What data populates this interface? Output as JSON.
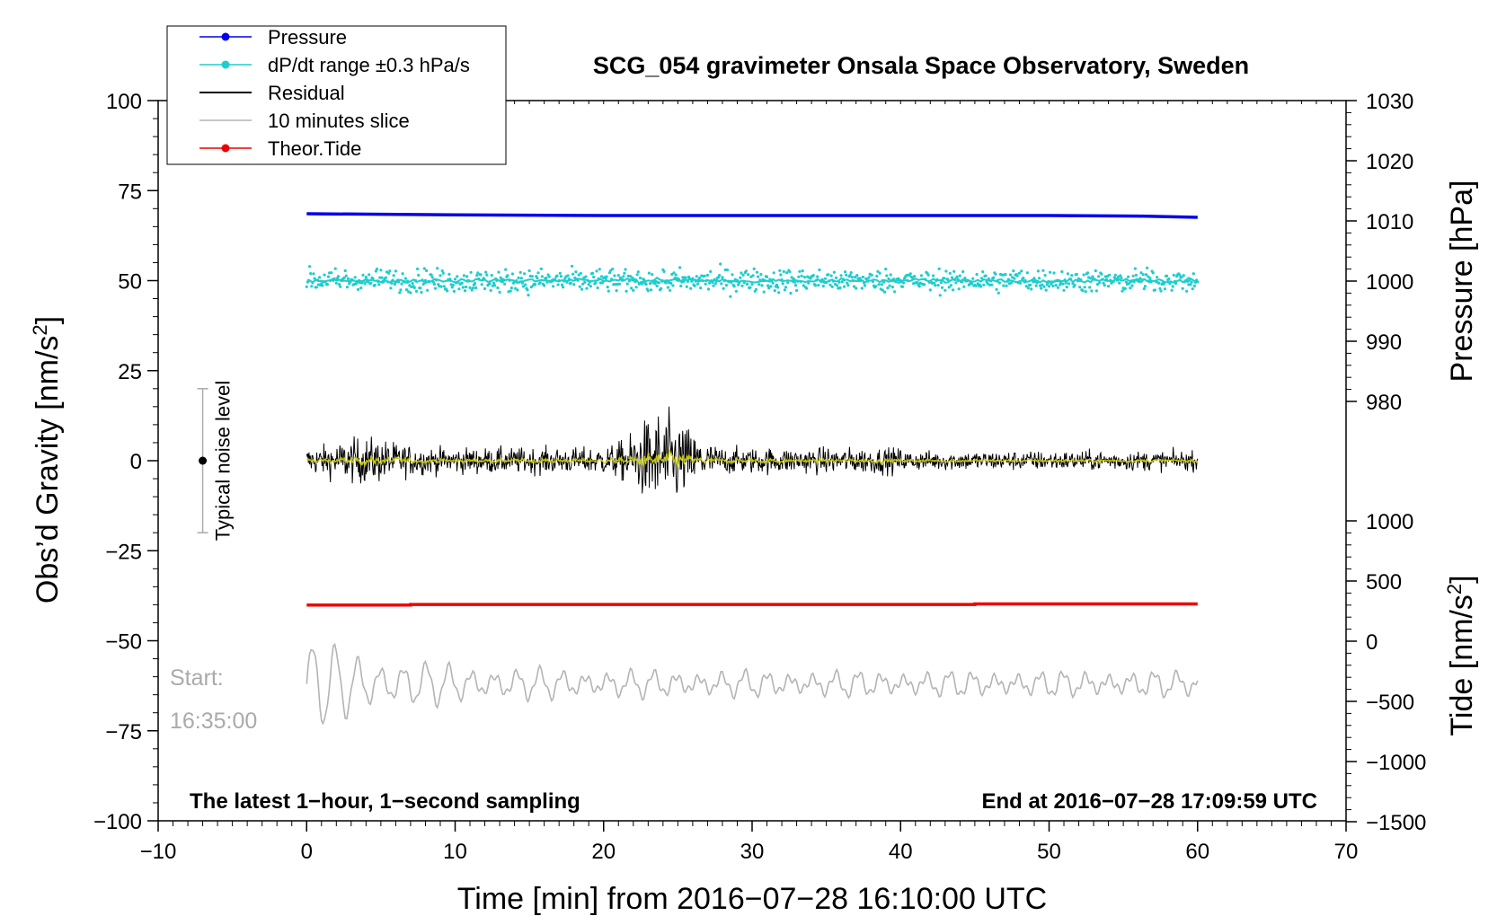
{
  "chart_data": {
    "type": "line",
    "title": "SCG_054 gravimeter Onsala Space Observatory, Sweden",
    "xlabel": "Time [min] from 2016−07−28 16:10:00 UTC",
    "ylabel_left": "Obs’d Gravity [nm/s²]",
    "ylabel_right_pressure": "Pressure [hPa]",
    "ylabel_right_tide": "Tide [nm/s²]",
    "xlim": [
      -10,
      70
    ],
    "ylim": [
      -100,
      100
    ],
    "pressure_axis": {
      "range": [
        980,
        1030
      ],
      "ticks": [
        980,
        990,
        1000,
        1010,
        1020,
        1030
      ]
    },
    "tide_axis": {
      "range": [
        -1500,
        1000
      ],
      "ticks": [
        -1500,
        -1000,
        -500,
        0,
        500,
        1000
      ]
    },
    "x_ticks": [
      -10,
      0,
      10,
      20,
      30,
      40,
      50,
      60,
      70
    ],
    "y_ticks": [
      -100,
      -75,
      -50,
      -25,
      0,
      25,
      50,
      75,
      100
    ],
    "x_tick_labels": [
      "−10",
      "0",
      "10",
      "20",
      "30",
      "40",
      "50",
      "60",
      "70"
    ],
    "y_tick_labels": [
      "−100",
      "−75",
      "−50",
      "−25",
      "0",
      "25",
      "50",
      "75",
      "100"
    ],
    "pressure_tick_labels": [
      "980",
      "990",
      "1000",
      "1010",
      "1020",
      "1030"
    ],
    "tide_tick_labels": [
      "−1500",
      "−1000",
      "−500",
      "0",
      "500",
      "1000"
    ],
    "legend": {
      "position": "top-left",
      "entries": [
        {
          "label": "Pressure",
          "color": "#0000ee",
          "marker": true
        },
        {
          "label": "dP/dt range ±0.3 hPa/s",
          "color": "#1ecdcd",
          "marker": true
        },
        {
          "label": "Residual",
          "color": "#000000",
          "marker": false
        },
        {
          "label": "10 minutes slice",
          "color": "#b4b4b4",
          "marker": false
        },
        {
          "label": "Theor.Tide",
          "color": "#ee0000",
          "marker": true
        }
      ]
    },
    "series": [
      {
        "name": "Pressure",
        "color": "#0000ee",
        "axis": "pressure",
        "x": [
          0,
          10,
          20,
          30,
          40,
          50,
          56,
          60
        ],
        "values": [
          1011.2,
          1011.0,
          1010.9,
          1010.9,
          1010.9,
          1010.9,
          1010.8,
          1010.6
        ]
      },
      {
        "name": "dP/dt range ±0.3 hPa/s",
        "color": "#1ecdcd",
        "axis": "left",
        "center": 50,
        "spread": 3
      },
      {
        "name": "Residual",
        "color": "#000000",
        "axis": "left",
        "center": 0,
        "typical_amplitude": 5,
        "max_amplitude": 15
      },
      {
        "name": "10 minutes slice",
        "color": "#b4b4b4",
        "axis": "left",
        "center": -62,
        "min": -74,
        "max": -51
      },
      {
        "name": "Theor.Tide",
        "color": "#ee0000",
        "axis": "tide",
        "x": [
          0,
          7,
          7,
          45,
          45,
          60
        ],
        "values": [
          300,
          300,
          305,
          305,
          310,
          310
        ]
      }
    ],
    "annotations": {
      "noise_label": "Typical noise level",
      "noise_center": 0,
      "noise_range": [
        -20,
        20
      ],
      "noise_x": -7,
      "bottom_left": "The latest 1−hour, 1−second sampling",
      "bottom_right": "End at 2016−07−28 17:09:59 UTC",
      "start_label": "Start:",
      "start_time": "16:35:00"
    }
  }
}
